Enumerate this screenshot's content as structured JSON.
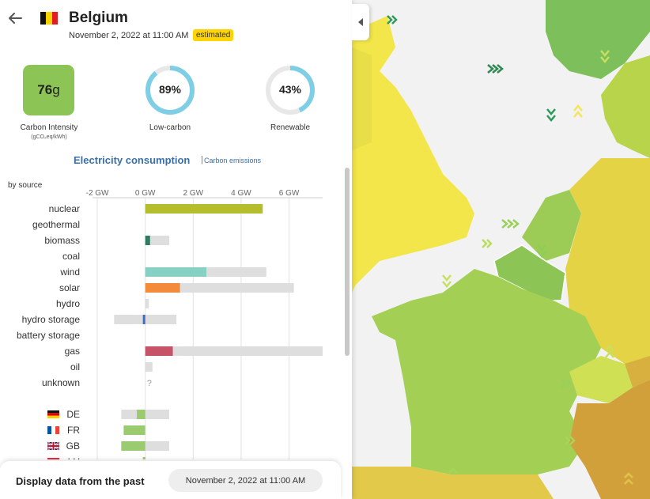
{
  "zone": {
    "name": "Belgium",
    "datetime": "November 2, 2022 at 11:00 AM",
    "badge": "estimated",
    "flag_colors": [
      "#111111",
      "#f5d100",
      "#e31b23"
    ]
  },
  "metrics": {
    "carbon_intensity": {
      "value": "76",
      "unit": "g",
      "label": "Carbon Intensity",
      "sublabel": "(gCO₂eq/kWh)",
      "color": "#8dc456"
    },
    "low_carbon": {
      "value": "89%",
      "fraction": 0.89,
      "label": "Low-carbon"
    },
    "renewable": {
      "value": "43%",
      "fraction": 0.43,
      "label": "Renewable"
    },
    "ring_color": "#7ecfe6",
    "ring_track": "#e8e8e8"
  },
  "section": {
    "title": "Electricity consumption",
    "separator": "|",
    "alt_link": "Carbon emissions",
    "by_source": "by source",
    "link_color": "#3a6fa8"
  },
  "chart_data": {
    "type": "bar",
    "unit": "GW",
    "xlim": [
      -2.2,
      7.4
    ],
    "ticks": [
      {
        "value": -2,
        "label": "-2 GW"
      },
      {
        "value": 0,
        "label": "0 GW"
      },
      {
        "value": 2,
        "label": "2 GW"
      },
      {
        "value": 4,
        "label": "4 GW"
      },
      {
        "value": 6,
        "label": "6 GW"
      }
    ],
    "sources": [
      {
        "name": "nuclear",
        "value": 4.9,
        "capacity": 4.9,
        "color": "#b4bd2b"
      },
      {
        "name": "geothermal",
        "value": null,
        "capacity": null,
        "color": "#000000"
      },
      {
        "name": "biomass",
        "value": 0.2,
        "capacity": 1.0,
        "color": "#2e7d62"
      },
      {
        "name": "coal",
        "value": null,
        "capacity": null,
        "color": "#000000"
      },
      {
        "name": "wind",
        "value": 2.55,
        "capacity": 5.05,
        "color": "#86d1c3"
      },
      {
        "name": "solar",
        "value": 1.45,
        "capacity": 6.2,
        "color": "#f28c3a"
      },
      {
        "name": "hydro",
        "value": 0,
        "capacity": 0.15,
        "color": "#3b77c7"
      },
      {
        "name": "hydro storage",
        "value": -0.1,
        "capacity_min": -1.3,
        "capacity": 1.3,
        "color": "#3b6fc4"
      },
      {
        "name": "battery storage",
        "value": null,
        "capacity": null,
        "color": "#000000"
      },
      {
        "name": "gas",
        "value": 1.15,
        "capacity": 7.4,
        "color": "#c65367"
      },
      {
        "name": "oil",
        "value": 0,
        "capacity": 0.3,
        "color": "#000000"
      },
      {
        "name": "unknown",
        "value": null,
        "capacity": null,
        "unknown_text": "?",
        "color": "#000000"
      }
    ],
    "exchanges": [
      {
        "code": "DE",
        "flag": "de",
        "value": -0.35,
        "capacity_min": -1.0,
        "capacity": 1.0
      },
      {
        "code": "FR",
        "flag": "fr",
        "value": -0.9,
        "capacity_min": -0.9,
        "capacity": 0
      },
      {
        "code": "GB",
        "flag": "gb",
        "value": -1.0,
        "capacity_min": -1.0,
        "capacity": 1.0
      },
      {
        "code": "LU",
        "flag": "lu",
        "value": -0.1,
        "capacity_min": -0.1,
        "capacity": 0
      }
    ],
    "exchange_color": "#9bcb6f",
    "capacity_color": "#dedede"
  },
  "bottom": {
    "label": "Display data from the past",
    "date": "November 2, 2022 at 11:00 AM"
  },
  "icons": {
    "back": "arrow-left-icon",
    "collapse": "triangle-left-icon",
    "map_arrows": "wind-arrow-icon"
  }
}
